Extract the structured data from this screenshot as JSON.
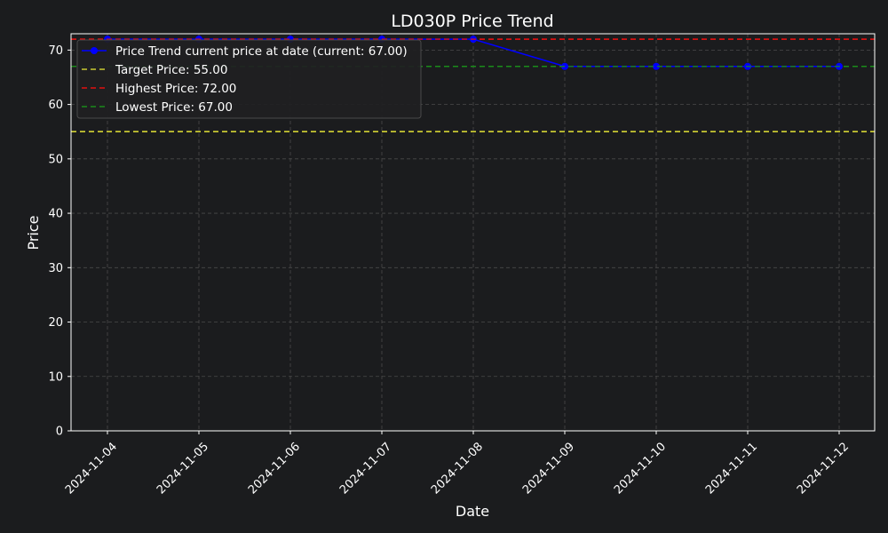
{
  "chart_data": {
    "type": "line",
    "title": "LD030P Price Trend",
    "xlabel": "Date",
    "ylabel": "Price",
    "ylim": [
      0,
      73
    ],
    "yticks": [
      0,
      10,
      20,
      30,
      40,
      50,
      60,
      70
    ],
    "grid": true,
    "legend_position": "top-left",
    "x": [
      "2024-11-04",
      "2024-11-05",
      "2024-11-06",
      "2024-11-07",
      "2024-11-08",
      "2024-11-09",
      "2024-11-10",
      "2024-11-11",
      "2024-11-12"
    ],
    "series": [
      {
        "name": "Price Trend current price at date (current: 67.00)",
        "values": [
          72,
          72,
          72,
          72,
          72,
          67,
          67,
          67,
          67
        ],
        "color": "#0000ff",
        "marker": "circle"
      }
    ],
    "reference_lines": [
      {
        "name": "Target Price: 55.00",
        "value": 55,
        "color": "#cccc33",
        "style": "dashed"
      },
      {
        "name": "Highest Price: 72.00",
        "value": 72,
        "color": "#e01010",
        "style": "dashed"
      },
      {
        "name": "Lowest Price: 67.00",
        "value": 67,
        "color": "#1a8c1a",
        "style": "dashed"
      }
    ],
    "colors": {
      "background": "#1b1c1e",
      "plot_background": "#1b1c1e",
      "grid": "#4a4a4a",
      "axis": "#ffffff",
      "text": "#ffffff"
    }
  }
}
